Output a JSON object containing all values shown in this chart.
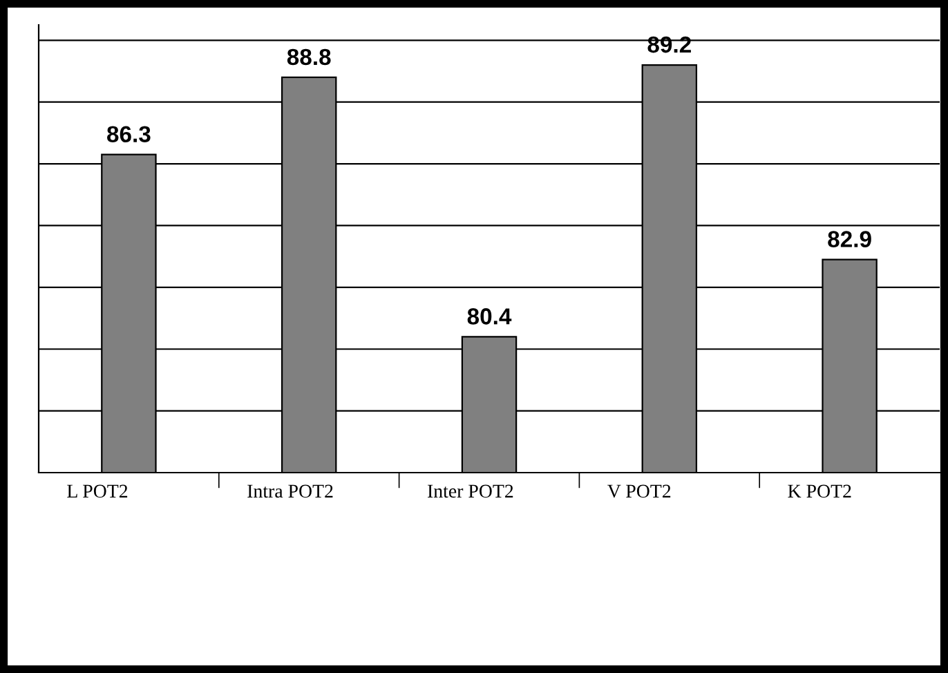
{
  "chart_data": {
    "type": "bar",
    "categories": [
      "L POT2",
      "Intra POT2",
      "Inter POT2",
      "V POT2",
      "K POT2"
    ],
    "values": [
      86.3,
      88.8,
      80.4,
      89.2,
      82.9
    ],
    "color": "#808080",
    "data_labels": true,
    "ylim": [
      76,
      90.5
    ],
    "yticks": [
      {
        "value": 78,
        "label": null
      },
      {
        "value": 80,
        "label": null
      },
      {
        "value": 82,
        "label": null
      },
      {
        "value": 84,
        "label": null
      },
      {
        "value": 86,
        "label": null
      },
      {
        "value": 88,
        "label": null
      },
      {
        "value": 90,
        "label": null
      }
    ],
    "grid": "y",
    "tick_labels": "x",
    "legend": false
  }
}
